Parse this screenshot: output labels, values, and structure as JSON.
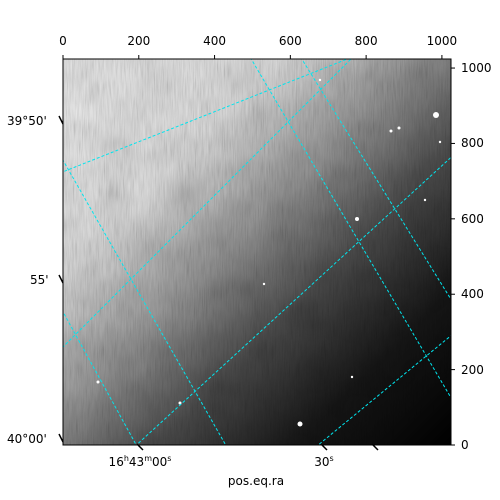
{
  "figure": {
    "xlabel": "pos.eq.ra",
    "pixel_axis_x": {
      "range": [
        0,
        1024
      ],
      "ticks": [
        {
          "value": 0,
          "label": "0"
        },
        {
          "value": 200,
          "label": "200"
        },
        {
          "value": 400,
          "label": "400"
        },
        {
          "value": 600,
          "label": "600"
        },
        {
          "value": 800,
          "label": "800"
        },
        {
          "value": 1000,
          "label": "1000"
        }
      ]
    },
    "pixel_axis_y": {
      "range": [
        0,
        1024
      ],
      "ticks": [
        {
          "value": 0,
          "label": "0"
        },
        {
          "value": 200,
          "label": "200"
        },
        {
          "value": 400,
          "label": "400"
        },
        {
          "value": 600,
          "label": "600"
        },
        {
          "value": 800,
          "label": "800"
        },
        {
          "value": 1000,
          "label": "1000"
        }
      ]
    },
    "dec_ticks": [
      "39°50'",
      "55'",
      "40°00'"
    ],
    "ra_ticks": [
      "16h43m00s",
      "30s"
    ],
    "ra_tick_parts": {
      "hours": "16",
      "h": "h",
      "minutes": "43",
      "m": "m",
      "seconds": "00",
      "s": "s"
    },
    "grid_color": "#00e5ee"
  }
}
